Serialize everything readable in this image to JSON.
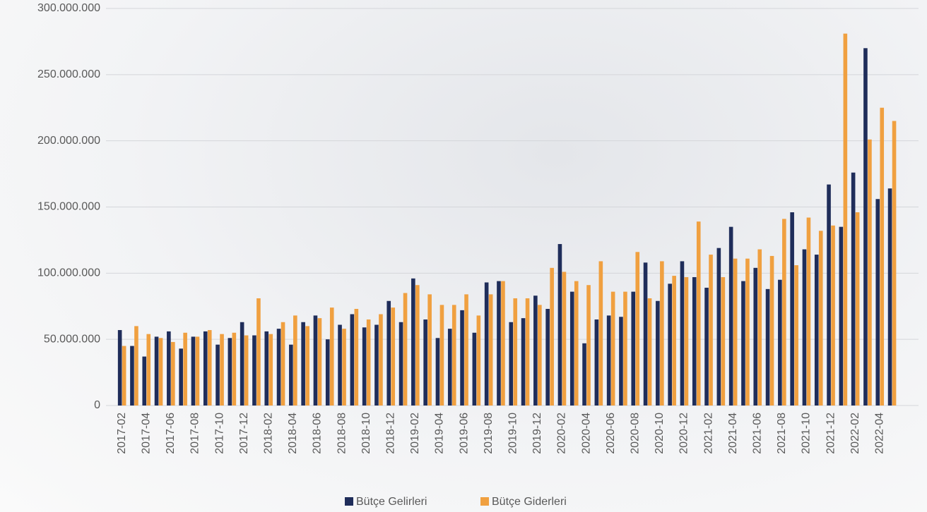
{
  "chart_data": {
    "type": "bar",
    "categories": [
      "2017-02",
      null,
      "2017-04",
      null,
      "2017-06",
      null,
      "2017-08",
      null,
      "2017-10",
      null,
      "2017-12",
      null,
      "2018-02",
      null,
      "2018-04",
      null,
      "2018-06",
      null,
      "2018-08",
      null,
      "2018-10",
      null,
      "2018-12",
      null,
      "2019-02",
      null,
      "2019-04",
      null,
      "2019-06",
      null,
      "2019-08",
      null,
      "2019-10",
      null,
      "2019-12",
      null,
      "2020-02",
      null,
      "2020-04",
      null,
      "2020-06",
      null,
      "2020-08",
      null,
      "2020-10",
      null,
      "2020-12",
      null,
      "2021-02",
      null,
      "2021-04",
      null,
      "2021-06",
      null,
      "2021-08",
      null,
      "2021-10",
      null,
      "2021-12",
      null,
      "2022-02",
      null,
      "2022-04",
      null
    ],
    "series": [
      {
        "name": "Bütçe Gelirleri",
        "color": "#1f2d5a",
        "values": [
          57000000,
          45000000,
          37000000,
          52000000,
          56000000,
          43000000,
          52000000,
          56000000,
          46000000,
          51000000,
          63000000,
          53000000,
          56000000,
          58000000,
          46000000,
          63000000,
          68000000,
          50000000,
          61000000,
          69000000,
          59000000,
          61000000,
          79000000,
          63000000,
          96000000,
          65000000,
          51000000,
          58000000,
          72000000,
          55000000,
          93000000,
          94000000,
          63000000,
          66000000,
          83000000,
          73000000,
          122000000,
          86000000,
          47000000,
          65000000,
          68000000,
          67000000,
          86000000,
          108000000,
          79000000,
          92000000,
          109000000,
          97000000,
          89000000,
          119000000,
          135000000,
          94000000,
          104000000,
          88000000,
          95000000,
          146000000,
          118000000,
          114000000,
          167000000,
          135000000,
          176000000,
          270000000,
          156000000,
          164000000
        ]
      },
      {
        "name": "Bütçe Giderleri",
        "color": "#f0a040",
        "values": [
          45000000,
          60000000,
          54000000,
          51000000,
          48000000,
          55000000,
          52000000,
          57000000,
          54000000,
          55000000,
          53000000,
          81000000,
          54000000,
          63000000,
          68000000,
          60000000,
          66000000,
          74000000,
          58000000,
          73000000,
          65000000,
          69000000,
          74000000,
          85000000,
          91000000,
          84000000,
          76000000,
          76000000,
          84000000,
          68000000,
          84000000,
          94000000,
          81000000,
          81000000,
          76000000,
          104000000,
          101000000,
          94000000,
          91000000,
          109000000,
          86000000,
          86000000,
          116000000,
          81000000,
          109000000,
          98000000,
          97000000,
          139000000,
          114000000,
          97000000,
          111000000,
          111000000,
          118000000,
          113000000,
          141000000,
          106000000,
          142000000,
          132000000,
          136000000,
          281000000,
          146000000,
          201000000,
          225000000,
          215000000
        ]
      }
    ],
    "ylim": [
      0,
      300000000
    ],
    "yticks": [
      0,
      {
        "value": 50000000,
        "label": "50.000.000"
      },
      {
        "value": 100000000,
        "label": "100.000.000"
      },
      {
        "value": 150000000,
        "label": "150.000.000"
      },
      {
        "value": 200000000,
        "label": "200.000.000"
      },
      {
        "value": 250000000,
        "label": "250.000.000"
      },
      {
        "value": 300000000,
        "label": "300.000.000"
      }
    ],
    "grid": true,
    "legend": "bottom"
  }
}
